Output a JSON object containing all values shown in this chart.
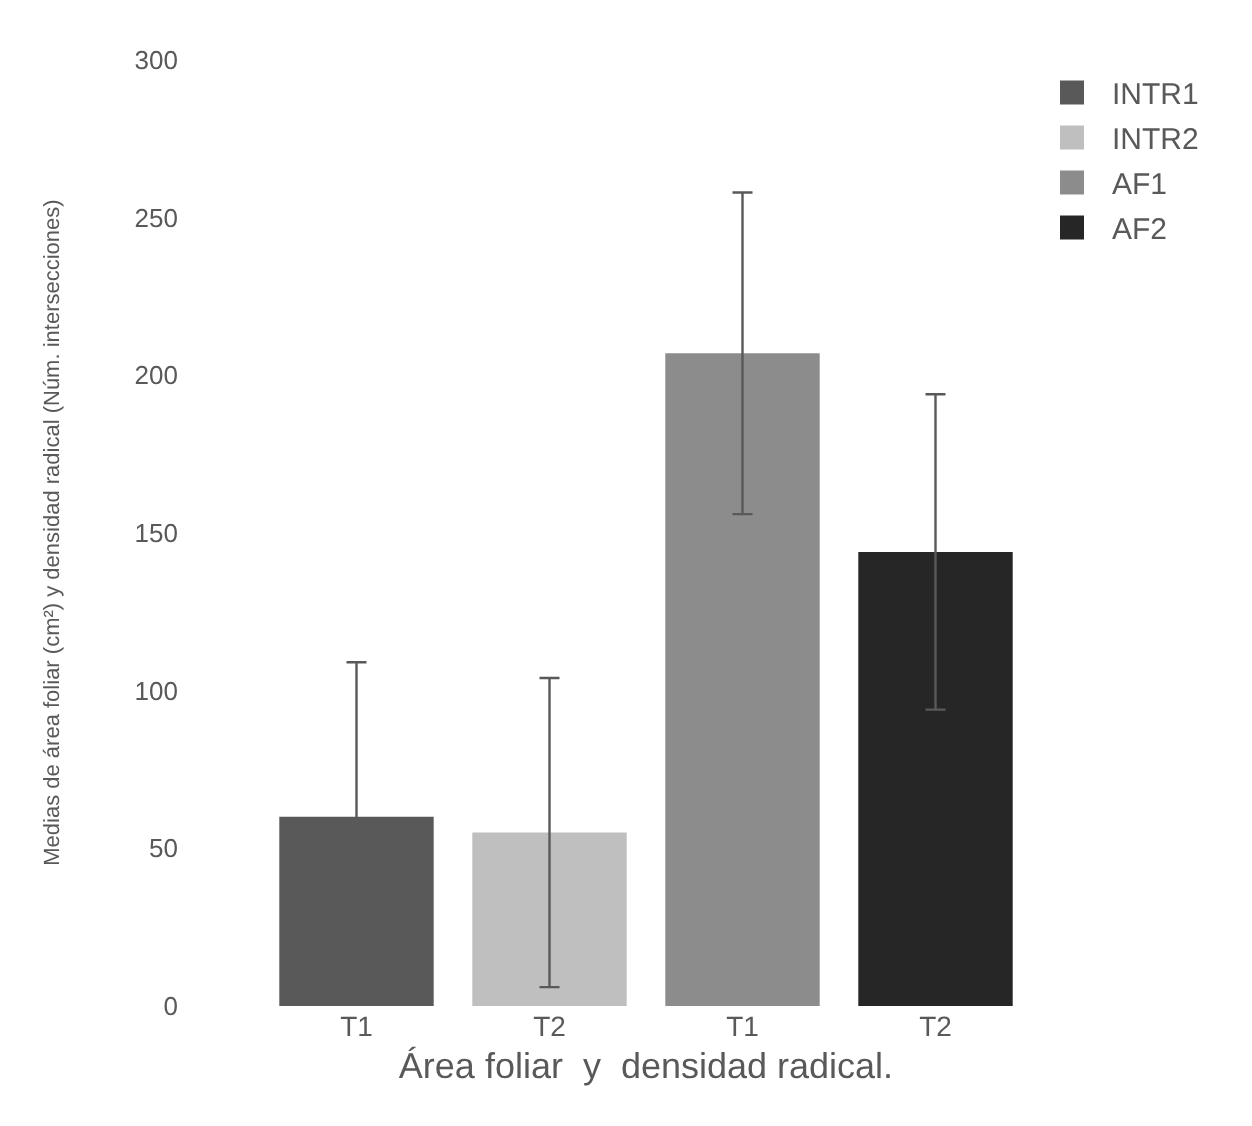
{
  "chart_data": {
    "type": "bar",
    "xlabel": "Área foliar  y  densidad radical.",
    "ylabel": "Medias de área foliar (cm²) y densidad radical (Núm. intersecciones)",
    "categories": [
      "T1",
      "T2",
      "T1",
      "T2"
    ],
    "series": [
      {
        "name": "INTR1",
        "color": "#595959",
        "values": [
          60,
          null,
          null,
          null
        ],
        "errors": [
          49,
          null,
          null,
          null
        ]
      },
      {
        "name": "INTR2",
        "color": "#bfbfbf",
        "values": [
          null,
          55,
          null,
          null
        ],
        "errors": [
          null,
          49,
          null,
          null
        ]
      },
      {
        "name": "AF1",
        "color": "#8c8c8c",
        "values": [
          null,
          null,
          207,
          null
        ],
        "errors": [
          null,
          null,
          51,
          null
        ]
      },
      {
        "name": "AF2",
        "color": "#262626",
        "values": [
          null,
          null,
          null,
          144
        ],
        "errors": [
          null,
          null,
          null,
          50
        ]
      }
    ],
    "ylim": [
      0,
      300
    ],
    "yticks": [
      0,
      50,
      100,
      150,
      200,
      250,
      300
    ],
    "grid": false,
    "legend": "top right"
  }
}
